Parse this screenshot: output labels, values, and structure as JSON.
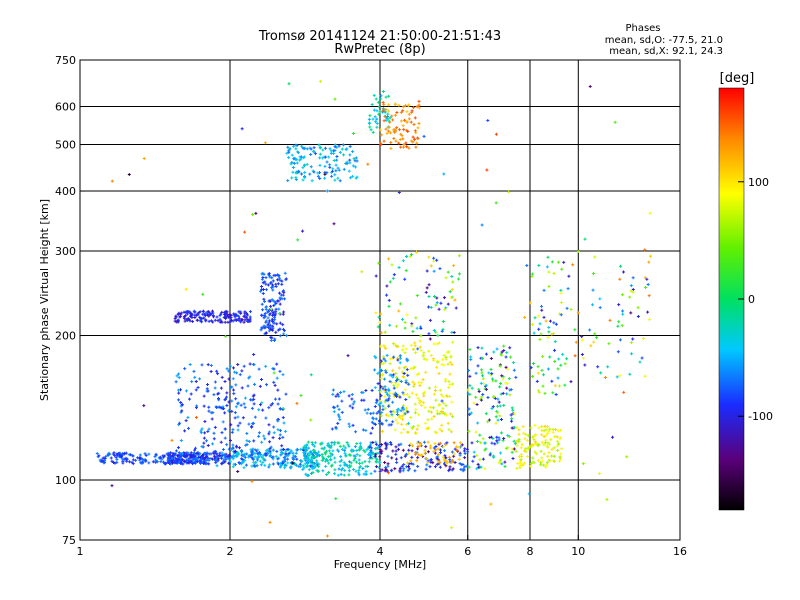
{
  "chart_data": {
    "type": "scatter",
    "title": "Tromsø 20141124 21:50:00-21:51:43",
    "subtitle": "RwPretec (8p)",
    "stats": {
      "heading": "Phases",
      "o_line": "mean, sd,O: -77.5, 21.0",
      "x_line": "mean, sd,X:  92.1, 24.3"
    },
    "xlabel": "Frequency [MHz]",
    "ylabel": "Stationary phase Virtual Height [km]",
    "x_scale": "log",
    "y_scale": "log",
    "xlim": [
      1,
      16
    ],
    "ylim": [
      75,
      750
    ],
    "x_ticks": [
      1,
      2,
      4,
      6,
      8,
      10,
      16
    ],
    "x_tick_labels": [
      "1",
      "2",
      "4",
      "6",
      "8",
      "10",
      "16"
    ],
    "y_ticks": [
      75,
      100,
      200,
      300,
      400,
      500,
      600,
      750
    ],
    "y_tick_labels": [
      "75",
      "100",
      "200",
      "300",
      "400",
      "500",
      "600",
      "750"
    ],
    "grid": true,
    "grid_x": [
      2,
      4,
      6,
      8,
      10
    ],
    "grid_y": [
      100,
      200,
      300,
      400,
      500,
      600
    ],
    "colorbar": {
      "label": "[deg]",
      "range": [
        -180,
        180
      ],
      "ticks": [
        -100,
        0,
        100
      ],
      "tick_labels": [
        "-100",
        "0",
        "100"
      ],
      "colormap": "black-purple-blue-cyan-green-yellow-orange-red"
    },
    "clusters": [
      {
        "f": [
          1.08,
          1.8
        ],
        "h": [
          108,
          114
        ],
        "phase": [
          -100,
          -60
        ],
        "n": 180
      },
      {
        "f": [
          1.5,
          2.0
        ],
        "h": [
          108,
          114
        ],
        "phase": [
          -110,
          -60
        ],
        "n": 180
      },
      {
        "f": [
          2.0,
          3.0
        ],
        "h": [
          106,
          116
        ],
        "phase": [
          -90,
          -20
        ],
        "n": 220
      },
      {
        "f": [
          2.8,
          4.0
        ],
        "h": [
          102,
          120
        ],
        "phase": [
          -60,
          0
        ],
        "n": 220
      },
      {
        "f": [
          1.55,
          2.6
        ],
        "h": [
          112,
          175
        ],
        "phase": [
          -110,
          -50
        ],
        "n": 260
      },
      {
        "f": [
          1.55,
          2.2
        ],
        "h": [
          213,
          225
        ],
        "phase": [
          -120,
          -80
        ],
        "n": 160
      },
      {
        "f": [
          2.3,
          2.6
        ],
        "h": [
          195,
          270
        ],
        "phase": [
          -110,
          -60
        ],
        "n": 150
      },
      {
        "f": [
          3.2,
          4.0
        ],
        "h": [
          125,
          155
        ],
        "phase": [
          -100,
          -50
        ],
        "n": 60
      },
      {
        "f": [
          2.6,
          3.6
        ],
        "h": [
          420,
          500
        ],
        "phase": [
          -80,
          -20
        ],
        "n": 140
      },
      {
        "f": [
          3.8,
          4.2
        ],
        "h": [
          530,
          650
        ],
        "phase": [
          -60,
          0
        ],
        "n": 40
      },
      {
        "f": [
          4.0,
          4.8
        ],
        "h": [
          490,
          620
        ],
        "phase": [
          110,
          160
        ],
        "n": 90
      },
      {
        "f": [
          4.0,
          5.6
        ],
        "h": [
          125,
          195
        ],
        "phase": [
          60,
          110
        ],
        "n": 220
      },
      {
        "f": [
          3.9,
          4.6
        ],
        "h": [
          130,
          185
        ],
        "phase": [
          -100,
          -40
        ],
        "n": 90
      },
      {
        "f": [
          3.8,
          6.0
        ],
        "h": [
          104,
          120
        ],
        "phase": [
          -140,
          -60
        ],
        "n": 150
      },
      {
        "f": [
          4.5,
          5.8
        ],
        "h": [
          108,
          120
        ],
        "phase": [
          100,
          150
        ],
        "n": 50
      },
      {
        "f": [
          3.9,
          5.8
        ],
        "h": [
          200,
          300
        ],
        "phase": [
          -140,
          140
        ],
        "n": 90
      },
      {
        "f": [
          6.0,
          7.5
        ],
        "h": [
          105,
          190
        ],
        "phase": [
          -140,
          100
        ],
        "n": 170
      },
      {
        "f": [
          7.5,
          9.3
        ],
        "h": [
          105,
          130
        ],
        "phase": [
          60,
          110
        ],
        "n": 120
      },
      {
        "f": [
          8.0,
          9.5
        ],
        "h": [
          150,
          300
        ],
        "phase": [
          -120,
          120
        ],
        "n": 70
      },
      {
        "f": [
          9.5,
          14.0
        ],
        "h": [
          160,
          300
        ],
        "phase": [
          -140,
          150
        ],
        "n": 70
      },
      {
        "f": [
          1.0,
          14.0
        ],
        "h": [
          75,
          700
        ],
        "phase": [
          -170,
          170
        ],
        "n": 80
      }
    ]
  }
}
